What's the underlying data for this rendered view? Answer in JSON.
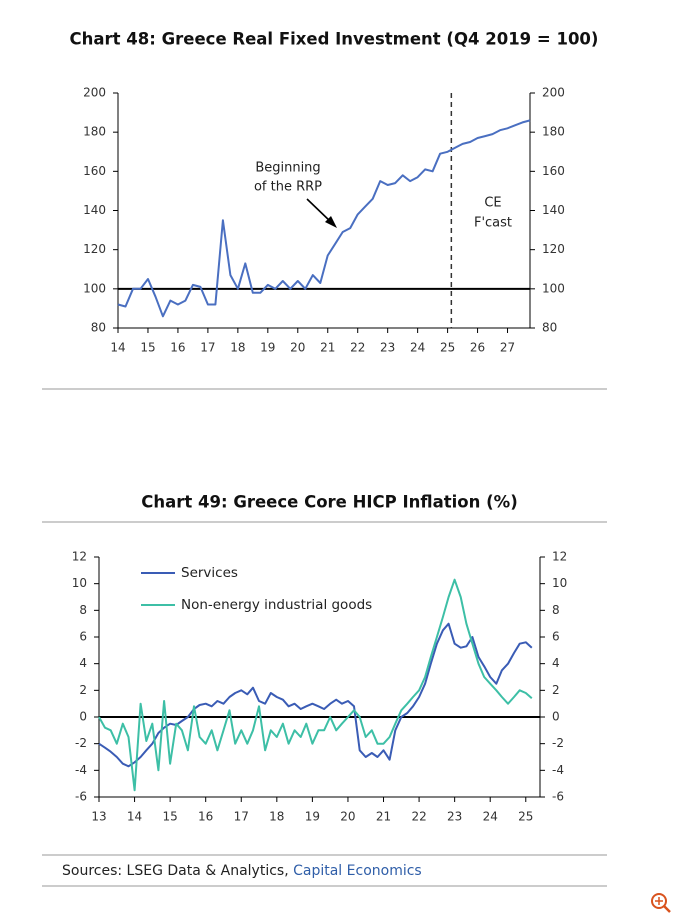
{
  "chart_data": [
    {
      "type": "line",
      "title": "Chart 48: Greece Real Fixed Investment (Q4 2019 = 100)",
      "x": [
        14,
        14.25,
        14.5,
        14.75,
        15,
        15.25,
        15.5,
        15.75,
        16,
        16.25,
        16.5,
        16.75,
        17,
        17.25,
        17.5,
        17.75,
        18,
        18.25,
        18.5,
        18.75,
        19,
        19.25,
        19.5,
        19.75,
        20,
        20.25,
        20.5,
        20.75,
        21,
        21.25,
        21.5,
        21.75,
        22,
        22.25,
        22.5,
        22.75,
        23,
        23.25,
        23.5,
        23.75,
        24,
        24.25,
        24.5,
        24.75,
        25,
        25.25,
        25.5,
        25.75,
        26,
        26.25,
        26.5,
        26.75,
        27,
        27.25,
        27.5,
        27.75
      ],
      "series": [
        {
          "color": "#4a6fc1",
          "values": [
            92,
            91,
            100,
            100,
            105,
            96,
            86,
            94,
            92,
            94,
            102,
            101,
            92,
            92,
            135,
            107,
            100,
            113,
            98,
            98,
            102,
            100,
            104,
            100,
            104,
            100,
            107,
            103,
            117,
            123,
            129,
            131,
            138,
            142,
            146,
            155,
            153,
            154,
            158,
            155,
            157,
            161,
            160,
            169,
            170,
            172,
            174,
            175,
            177,
            178,
            179,
            181,
            182,
            183.5,
            185,
            186
          ]
        }
      ],
      "xlim": [
        14,
        27.75
      ],
      "xticks": [
        14,
        15,
        16,
        17,
        18,
        19,
        20,
        21,
        22,
        23,
        24,
        25,
        26,
        27
      ],
      "ylim": [
        80,
        200
      ],
      "yticks": [
        80,
        100,
        120,
        140,
        160,
        180,
        200
      ],
      "hline": 100,
      "forecast_start": 25.125,
      "annotations": [
        {
          "lines": [
            "Beginning",
            "of the RRP"
          ]
        },
        {
          "lines": [
            "CE",
            "F'cast"
          ]
        }
      ]
    },
    {
      "type": "line",
      "title": "Chart 49: Greece Core HICP Inflation (%)",
      "x": [
        13,
        13.17,
        13.33,
        13.5,
        13.67,
        13.83,
        14,
        14.17,
        14.33,
        14.5,
        14.67,
        14.83,
        15,
        15.17,
        15.33,
        15.5,
        15.67,
        15.83,
        16,
        16.17,
        16.33,
        16.5,
        16.67,
        16.83,
        17,
        17.17,
        17.33,
        17.5,
        17.67,
        17.83,
        18,
        18.17,
        18.33,
        18.5,
        18.67,
        18.83,
        19,
        19.17,
        19.33,
        19.5,
        19.67,
        19.83,
        20,
        20.17,
        20.33,
        20.5,
        20.67,
        20.83,
        21,
        21.17,
        21.33,
        21.5,
        21.67,
        21.83,
        22,
        22.17,
        22.33,
        22.5,
        22.67,
        22.83,
        23,
        23.17,
        23.33,
        23.5,
        23.67,
        23.83,
        24,
        24.17,
        24.33,
        24.5,
        24.67,
        24.83,
        25,
        25.17
      ],
      "series": [
        {
          "name": "Services",
          "color": "#3a5cb5",
          "values": [
            -2,
            -2.3,
            -2.6,
            -3,
            -3.5,
            -3.7,
            -3.4,
            -3,
            -2.5,
            -2,
            -1.2,
            -0.8,
            -0.5,
            -0.6,
            -0.3,
            0,
            0.6,
            0.9,
            1,
            0.8,
            1.2,
            1,
            1.5,
            1.8,
            2,
            1.7,
            2.2,
            1.2,
            1,
            1.8,
            1.5,
            1.3,
            0.8,
            1,
            0.6,
            0.8,
            1,
            0.8,
            0.6,
            1,
            1.3,
            1,
            1.2,
            0.8,
            -2.5,
            -3,
            -2.7,
            -3,
            -2.5,
            -3.2,
            -1,
            0,
            0.3,
            0.8,
            1.5,
            2.5,
            4,
            5.5,
            6.5,
            7,
            5.5,
            5.2,
            5.3,
            6,
            4.5,
            3.8,
            3,
            2.5,
            3.5,
            4,
            4.8,
            5.5,
            5.6,
            5.2
          ]
        },
        {
          "name": "Non-energy industrial goods",
          "color": "#3dbfa6",
          "values": [
            0,
            -0.8,
            -1,
            -2,
            -0.5,
            -1.5,
            -5.5,
            1,
            -1.8,
            -0.5,
            -4,
            1.2,
            -3.5,
            -0.5,
            -1,
            -2.5,
            0.8,
            -1.5,
            -2,
            -1,
            -2.5,
            -1,
            0.5,
            -2,
            -1,
            -2,
            -1,
            0.8,
            -2.5,
            -1,
            -1.5,
            -0.5,
            -2,
            -1,
            -1.5,
            -0.5,
            -2,
            -1,
            -1,
            0,
            -1,
            -0.5,
            0,
            0.5,
            0,
            -1.5,
            -1,
            -2,
            -2,
            -1.5,
            -0.5,
            0.5,
            1,
            1.5,
            2,
            3,
            4.5,
            6,
            7.5,
            9,
            10.3,
            9,
            7,
            5.5,
            4,
            3,
            2.5,
            2,
            1.5,
            1,
            1.5,
            2,
            1.8,
            1.4
          ]
        }
      ],
      "xlim": [
        13,
        25.4
      ],
      "xticks": [
        13,
        14,
        15,
        16,
        17,
        18,
        19,
        20,
        21,
        22,
        23,
        24,
        25
      ],
      "ylim": [
        -6,
        12
      ],
      "yticks": [
        -6,
        -4,
        -2,
        0,
        2,
        4,
        6,
        8,
        10,
        12
      ],
      "hline": 0,
      "legend": "upper left"
    }
  ],
  "sources": {
    "text": "Sources: LSEG Data & Analytics,",
    "link": "Capital Economics"
  }
}
